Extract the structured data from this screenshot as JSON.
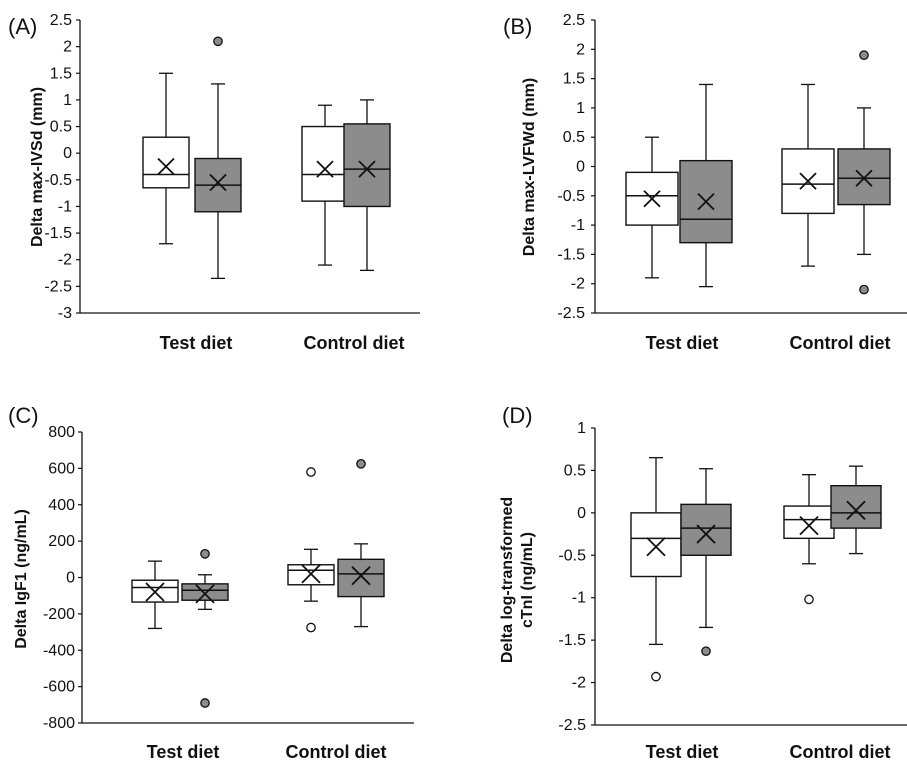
{
  "colors": {
    "test_fill": "#ffffff",
    "control_fill": "#8c8c8c",
    "stroke": "#111111",
    "gray_outlier": "#8c8c8c"
  },
  "chart_data": [
    {
      "panel": "(A)",
      "type": "box",
      "ylabel": "Delta max-IVSd (mm)",
      "ylim": [
        -3,
        2.5
      ],
      "yticks": [
        2.5,
        2,
        1.5,
        1,
        0.5,
        0,
        -0.5,
        -1,
        -1.5,
        -2,
        -2.5,
        -3
      ],
      "ytick_labels": [
        "2.5",
        "2",
        "1.5",
        "1",
        "0.5",
        "0",
        "-0.5",
        "-1",
        "-1.5",
        "-2",
        "-2.5",
        "-3"
      ],
      "categories": [
        "Test diet",
        "Control diet"
      ],
      "boxes": [
        {
          "category": "Test diet",
          "fill": "white",
          "min": -1.7,
          "q1": -0.65,
          "median": -0.4,
          "q3": 0.3,
          "max": 1.5,
          "mean": -0.25,
          "outliers": []
        },
        {
          "category": "Test diet",
          "fill": "gray",
          "min": -2.35,
          "q1": -1.1,
          "median": -0.6,
          "q3": -0.1,
          "max": 1.3,
          "mean": -0.55,
          "outliers": [
            2.1
          ]
        },
        {
          "category": "Control diet",
          "fill": "white",
          "min": -2.1,
          "q1": -0.9,
          "median": -0.4,
          "q3": 0.5,
          "max": 0.9,
          "mean": -0.3,
          "outliers": []
        },
        {
          "category": "Control diet",
          "fill": "gray",
          "min": -2.2,
          "q1": -1.0,
          "median": -0.3,
          "q3": 0.55,
          "max": 1.0,
          "mean": -0.3,
          "outliers": []
        }
      ]
    },
    {
      "panel": "(B)",
      "type": "box",
      "ylabel": "Delta max-LVFWd (mm)",
      "ylim": [
        -2.5,
        2.5
      ],
      "yticks": [
        2.5,
        2,
        1.5,
        1,
        0.5,
        0,
        -0.5,
        -1,
        -1.5,
        -2,
        -2.5
      ],
      "ytick_labels": [
        "2.5",
        "2",
        "1.5",
        "1",
        "0.5",
        "0",
        "-0.5",
        "-1",
        "-1.5",
        "-2",
        "-2.5"
      ],
      "categories": [
        "Test diet",
        "Control diet"
      ],
      "boxes": [
        {
          "category": "Test diet",
          "fill": "white",
          "min": -1.9,
          "q1": -1.0,
          "median": -0.5,
          "q3": -0.1,
          "max": 0.5,
          "mean": -0.55,
          "outliers": []
        },
        {
          "category": "Test diet",
          "fill": "gray",
          "min": -2.05,
          "q1": -1.3,
          "median": -0.9,
          "q3": 0.1,
          "max": 1.4,
          "mean": -0.6,
          "outliers": []
        },
        {
          "category": "Control diet",
          "fill": "white",
          "min": -1.7,
          "q1": -0.8,
          "median": -0.3,
          "q3": 0.3,
          "max": 1.4,
          "mean": -0.25,
          "outliers": []
        },
        {
          "category": "Control diet",
          "fill": "gray",
          "min": -1.5,
          "q1": -0.65,
          "median": -0.2,
          "q3": 0.3,
          "max": 1.0,
          "mean": -0.2,
          "outliers": [
            1.9,
            -2.1
          ]
        }
      ]
    },
    {
      "panel": "(C)",
      "type": "box",
      "ylabel": "Delta IgF1 (ng/mL)",
      "ylim": [
        -800,
        800
      ],
      "yticks": [
        800,
        600,
        400,
        200,
        0,
        -200,
        -400,
        -600,
        -800
      ],
      "ytick_labels": [
        "800",
        "600",
        "400",
        "200",
        "0",
        "-200",
        "-400",
        "-600",
        "-800"
      ],
      "categories": [
        "Test diet",
        "Control diet"
      ],
      "boxes": [
        {
          "category": "Test diet",
          "fill": "white",
          "min": -280,
          "q1": -135,
          "median": -55,
          "q3": -15,
          "max": 90,
          "mean": -80,
          "outliers": []
        },
        {
          "category": "Test diet",
          "fill": "gray",
          "min": -175,
          "q1": -125,
          "median": -70,
          "q3": -35,
          "max": 15,
          "mean": -90,
          "outliers": [
            130,
            -690
          ]
        },
        {
          "category": "Control diet",
          "fill": "white",
          "min": -130,
          "q1": -40,
          "median": 40,
          "q3": 70,
          "max": 155,
          "mean": 20,
          "outliers": [
            580,
            -275
          ]
        },
        {
          "category": "Control diet",
          "fill": "gray",
          "min": -270,
          "q1": -105,
          "median": 20,
          "q3": 100,
          "max": 185,
          "mean": 10,
          "outliers": [
            625
          ]
        }
      ]
    },
    {
      "panel": "(D)",
      "type": "box",
      "ylabel_line1": "Delta log-transformed",
      "ylabel_line2": "cTnI (ng/mL)",
      "ylim": [
        -2.5,
        1
      ],
      "yticks": [
        1,
        0.5,
        0,
        -0.5,
        -1,
        -1.5,
        -2,
        -2.5
      ],
      "ytick_labels": [
        "1",
        "0.5",
        "0",
        "-0.5",
        "-1",
        "-1.5",
        "-2",
        "-2.5"
      ],
      "categories": [
        "Test diet",
        "Control diet"
      ],
      "boxes": [
        {
          "category": "Test diet",
          "fill": "white",
          "min": -1.55,
          "q1": -0.75,
          "median": -0.3,
          "q3": 0.0,
          "max": 0.65,
          "mean": -0.4,
          "outliers": [
            -1.93
          ]
        },
        {
          "category": "Test diet",
          "fill": "gray",
          "min": -1.35,
          "q1": -0.5,
          "median": -0.18,
          "q3": 0.1,
          "max": 0.52,
          "mean": -0.25,
          "outliers": [
            -1.63
          ]
        },
        {
          "category": "Control diet",
          "fill": "white",
          "min": -0.6,
          "q1": -0.3,
          "median": -0.08,
          "q3": 0.08,
          "max": 0.45,
          "mean": -0.15,
          "outliers": [
            -1.02
          ]
        },
        {
          "category": "Control diet",
          "fill": "gray",
          "min": -0.48,
          "q1": -0.18,
          "median": 0.0,
          "q3": 0.32,
          "max": 0.55,
          "mean": 0.03,
          "outliers": []
        }
      ]
    }
  ]
}
